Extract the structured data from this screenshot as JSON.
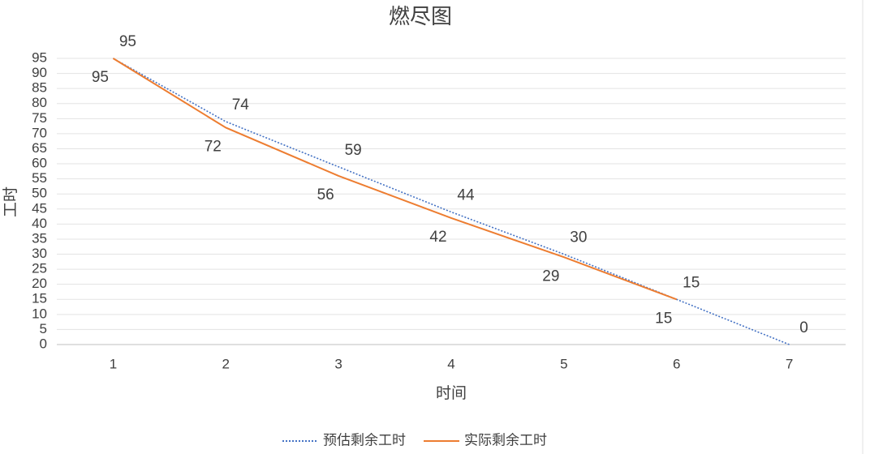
{
  "chart_data": {
    "type": "line",
    "title": "燃尽图",
    "x_label": "时间",
    "y_label": "工时",
    "categories": [
      "1",
      "2",
      "3",
      "4",
      "5",
      "6",
      "7"
    ],
    "series": [
      {
        "name": "预估剩余工时",
        "color": "#4472c4",
        "dash": "dotted",
        "values": [
          95,
          74,
          59,
          44,
          30,
          15,
          0
        ]
      },
      {
        "name": "实际剩余工时",
        "color": "#ed7d31",
        "dash": "solid",
        "values": [
          95,
          72,
          56,
          42,
          29,
          15,
          null
        ]
      }
    ],
    "ylim": [
      0,
      95
    ],
    "yticks": [
      0,
      5,
      10,
      15,
      20,
      25,
      30,
      35,
      40,
      45,
      50,
      55,
      60,
      65,
      70,
      75,
      80,
      85,
      90,
      95
    ],
    "grid": true,
    "legend": "bottom"
  }
}
